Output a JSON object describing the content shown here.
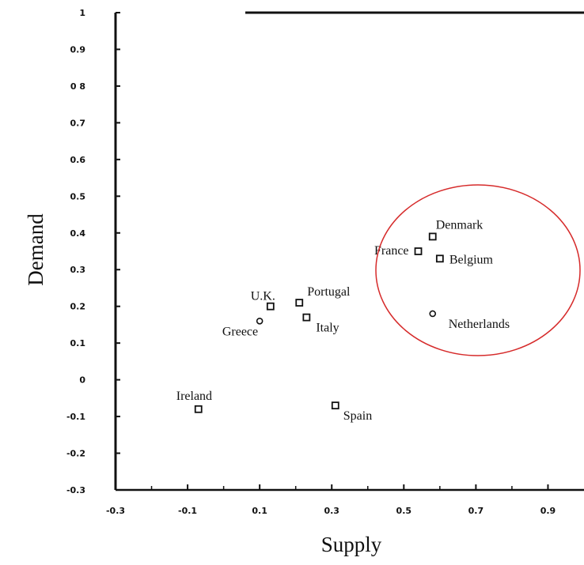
{
  "chart_data": {
    "type": "scatter",
    "xlabel": "Supply",
    "ylabel": "Demand",
    "xlim": [
      -0.3,
      1.0
    ],
    "ylim": [
      -0.3,
      1.0
    ],
    "x_ticks": [
      "-0.3",
      "-0.1",
      "0.1",
      "0.3",
      "0.5",
      "0.7",
      "0.9"
    ],
    "x_tick_values": [
      -0.3,
      -0.1,
      0.1,
      0.3,
      0.5,
      0.7,
      0.9
    ],
    "y_ticks": [
      "1",
      "0.9",
      "0 8",
      "0.7",
      "0.6",
      "0.5",
      "0.4",
      "0.3",
      "0.2",
      "0.1",
      "0",
      "-0.1",
      "-0.2",
      "-0.3"
    ],
    "y_tick_values": [
      1,
      0.9,
      0.8,
      0.7,
      0.6,
      0.5,
      0.4,
      0.3,
      0.2,
      0.1,
      0,
      -0.1,
      -0.2,
      -0.3
    ],
    "grid": false,
    "points": [
      {
        "label": "Denmark",
        "x": 0.58,
        "y": 0.39,
        "marker": "square"
      },
      {
        "label": "France",
        "x": 0.54,
        "y": 0.35,
        "marker": "square"
      },
      {
        "label": "Belgium",
        "x": 0.6,
        "y": 0.33,
        "marker": "square"
      },
      {
        "label": "Netherlands",
        "x": 0.58,
        "y": 0.18,
        "marker": "circle"
      },
      {
        "label": "Portugal",
        "x": 0.21,
        "y": 0.21,
        "marker": "square"
      },
      {
        "label": "U.K.",
        "x": 0.13,
        "y": 0.2,
        "marker": "square"
      },
      {
        "label": "Italy",
        "x": 0.23,
        "y": 0.17,
        "marker": "square"
      },
      {
        "label": "Greece",
        "x": 0.1,
        "y": 0.16,
        "marker": "circle"
      },
      {
        "label": "Ireland",
        "x": -0.07,
        "y": -0.08,
        "marker": "square"
      },
      {
        "label": "Spain",
        "x": 0.31,
        "y": -0.07,
        "marker": "square"
      }
    ],
    "annotation": {
      "shape": "ellipse",
      "color": "#d62b2b",
      "encloses": [
        "Denmark",
        "France",
        "Belgium",
        "Netherlands"
      ]
    }
  }
}
